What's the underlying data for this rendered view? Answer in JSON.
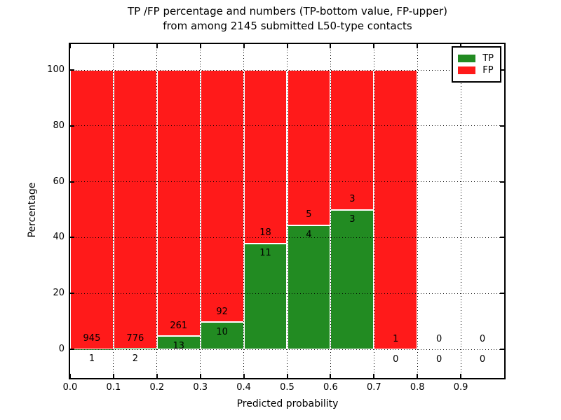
{
  "title": {
    "line1": "TP /FP percentage and numbers (TP-bottom value, FP-upper)",
    "line2": "from among 2145 submitted L50-type contacts"
  },
  "axes": {
    "ylabel": "Percentage",
    "xlabel": "Predicted probability",
    "x_tick_labels": [
      "0.0",
      "0.1",
      "0.2",
      "0.3",
      "0.4",
      "0.5",
      "0.6",
      "0.7",
      "0.8",
      "0.9"
    ],
    "y_tick_labels": [
      "0",
      "20",
      "40",
      "60",
      "80",
      "100"
    ]
  },
  "legend": {
    "items": [
      {
        "label": "TP",
        "color": "#228b22"
      },
      {
        "label": "FP",
        "color": "#ff1a1a"
      }
    ]
  },
  "chart_data": {
    "type": "bar",
    "stacked": true,
    "title": "TP /FP percentage and numbers (TP-bottom value, FP-upper) from among 2145 submitted L50-type contacts",
    "xlabel": "Predicted probability",
    "ylabel": "Percentage",
    "total_contacts": 2145,
    "categories": [
      "0.0-0.1",
      "0.1-0.2",
      "0.2-0.3",
      "0.3-0.4",
      "0.4-0.5",
      "0.5-0.6",
      "0.6-0.7",
      "0.7-0.8",
      "0.8-0.9",
      "0.9-1.0"
    ],
    "series": [
      {
        "name": "TP",
        "color": "#228b22",
        "values": [
          1,
          2,
          13,
          10,
          11,
          4,
          3,
          0,
          0,
          0
        ]
      },
      {
        "name": "FP",
        "color": "#ff1a1a",
        "values": [
          945,
          776,
          261,
          92,
          18,
          5,
          3,
          1,
          0,
          0
        ]
      }
    ],
    "tp_percent_heights": [
      0.11,
      0.26,
      4.74,
      9.8,
      37.93,
      44.44,
      50.0,
      0.0,
      null,
      null
    ],
    "bar_total_percent": 100,
    "xlim": [
      0.0,
      1.0
    ],
    "ylim": [
      -10.3,
      109.3
    ],
    "x_ticks": [
      0.0,
      0.1,
      0.2,
      0.3,
      0.4,
      0.5,
      0.6,
      0.7,
      0.8,
      0.9
    ],
    "y_ticks": [
      0,
      20,
      40,
      60,
      80,
      100
    ],
    "grid": true,
    "grid_style": "dotted",
    "bar_edge_color": "#ffffff",
    "legend_position": "upper right",
    "annotation_note": "FP count printed above TP segment top, TP count printed below it"
  }
}
